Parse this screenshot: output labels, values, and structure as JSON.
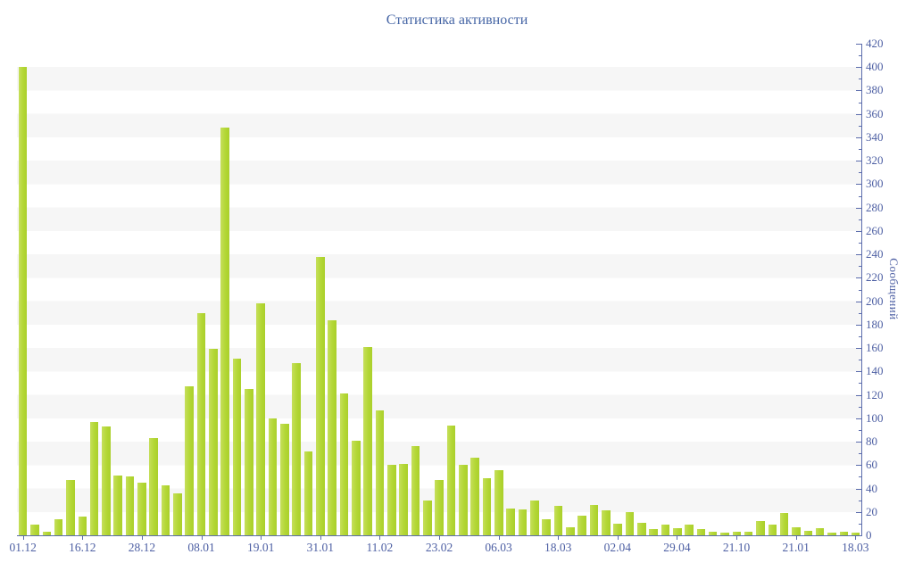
{
  "title": "Статистика активности",
  "y_axis_title": "Сообщений",
  "colors": {
    "bar": "#b3d735",
    "bar_light_edge": "#c6df5b",
    "axis_line": "#5b6cac",
    "tick_text": "#4d5fa3",
    "title_text": "#4565a5",
    "stripe": "#f6f6f6",
    "background": "#ffffff"
  },
  "chart_data": {
    "type": "bar",
    "title": "Статистика активности",
    "xlabel": "",
    "ylabel": "Сообщений",
    "ylim": [
      0,
      420
    ],
    "y_major_step": 20,
    "y_minor_step": 10,
    "grid": "striped-horizontal-bands",
    "legend": "none",
    "bar_count": 71,
    "label_every": 5,
    "categories": [
      "01.12",
      "16.12",
      "28.12",
      "08.01",
      "19.01",
      "31.01",
      "11.02",
      "23.02",
      "06.03",
      "18.03",
      "02.04",
      "29.04",
      "21.10",
      "21.01",
      "18.03"
    ],
    "values": [
      400,
      9,
      3,
      14,
      47,
      16,
      97,
      93,
      51,
      50,
      45,
      83,
      43,
      36,
      127,
      190,
      159,
      348,
      151,
      125,
      198,
      100,
      95,
      147,
      72,
      238,
      184,
      121,
      81,
      161,
      107,
      60,
      61,
      76,
      30,
      47,
      94,
      60,
      66,
      49,
      56,
      23,
      22,
      30,
      14,
      25,
      7,
      17,
      26,
      21,
      10,
      20,
      11,
      5,
      9,
      6,
      9,
      5,
      3,
      2,
      3,
      3,
      12,
      9,
      19,
      7,
      4,
      6,
      2,
      3,
      2
    ]
  }
}
